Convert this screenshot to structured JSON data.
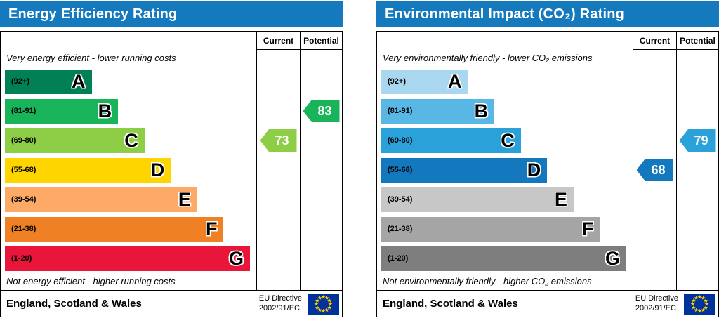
{
  "flag": {
    "background": "#003399",
    "star": "#ffcc00"
  },
  "chart_data": [
    {
      "type": "bar",
      "title": "Energy Efficiency Rating",
      "header_color": "#1479bd",
      "columns": {
        "current": "Current",
        "potential": "Potential"
      },
      "top_caption": "Very energy efficient - lower running costs",
      "bottom_caption": "Not energy efficient - higher running costs",
      "bands": [
        {
          "letter": "A",
          "range": "(92+)",
          "color": "#008054",
          "width_pct": 34.5
        },
        {
          "letter": "B",
          "range": "(81-91)",
          "color": "#19b459",
          "width_pct": 45.0
        },
        {
          "letter": "C",
          "range": "(69-80)",
          "color": "#8dce46",
          "width_pct": 55.5
        },
        {
          "letter": "D",
          "range": "(55-68)",
          "color": "#ffd500",
          "width_pct": 66.0
        },
        {
          "letter": "E",
          "range": "(39-54)",
          "color": "#fcaa65",
          "width_pct": 76.5
        },
        {
          "letter": "F",
          "range": "(21-38)",
          "color": "#ef8023",
          "width_pct": 87.0
        },
        {
          "letter": "G",
          "range": "(1-20)",
          "color": "#e9153b",
          "width_pct": 97.5
        }
      ],
      "current": {
        "value": 73,
        "band": "C",
        "band_index": 2,
        "color": "#8dce46"
      },
      "potential": {
        "value": 83,
        "band": "B",
        "band_index": 1,
        "color": "#19b459"
      },
      "footer": {
        "region": "England, Scotland & Wales",
        "directive_line1": "EU Directive",
        "directive_line2": "2002/91/EC"
      }
    },
    {
      "type": "bar",
      "title": "Environmental Impact (CO₂) Rating",
      "header_color": "#1479bd",
      "columns": {
        "current": "Current",
        "potential": "Potential"
      },
      "top_caption": "Very environmentally friendly - lower CO₂ emissions",
      "bottom_caption": "Not environmentally friendly - higher CO₂ emissions",
      "bands": [
        {
          "letter": "A",
          "range": "(92+)",
          "color": "#aad7f0",
          "width_pct": 34.5
        },
        {
          "letter": "B",
          "range": "(81-91)",
          "color": "#58b7e5",
          "width_pct": 45.0
        },
        {
          "letter": "C",
          "range": "(69-80)",
          "color": "#2ba1d9",
          "width_pct": 55.5
        },
        {
          "letter": "D",
          "range": "(55-68)",
          "color": "#1478be",
          "width_pct": 66.0
        },
        {
          "letter": "E",
          "range": "(39-54)",
          "color": "#c7c7c7",
          "width_pct": 76.5
        },
        {
          "letter": "F",
          "range": "(21-38)",
          "color": "#a5a5a5",
          "width_pct": 87.0
        },
        {
          "letter": "G",
          "range": "(1-20)",
          "color": "#7e7e7e",
          "width_pct": 97.5
        }
      ],
      "current": {
        "value": 68,
        "band": "D",
        "band_index": 3,
        "color": "#1478be"
      },
      "potential": {
        "value": 79,
        "band": "C",
        "band_index": 2,
        "color": "#2ba1d9"
      },
      "footer": {
        "region": "England, Scotland & Wales",
        "directive_line1": "EU Directive",
        "directive_line2": "2002/91/EC"
      }
    }
  ]
}
